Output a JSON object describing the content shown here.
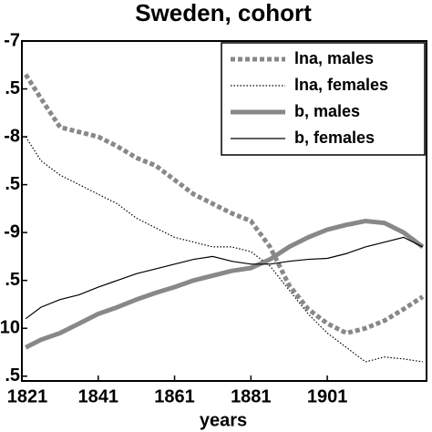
{
  "chart_data": {
    "type": "line",
    "title": "Sweden, cohort",
    "xlabel": "years",
    "x": [
      1822,
      1826,
      1831,
      1836,
      1841,
      1846,
      1851,
      1856,
      1861,
      1866,
      1871,
      1876,
      1881,
      1886,
      1891,
      1896,
      1901,
      1906,
      1911,
      1916,
      1921,
      1926
    ],
    "series": [
      {
        "name": "lna, males",
        "color": "#888888",
        "style": "dashed",
        "weight": "thick",
        "values": [
          -7.35,
          -7.6,
          -7.9,
          -7.95,
          -8.0,
          -8.1,
          -8.22,
          -8.3,
          -8.45,
          -8.6,
          -8.7,
          -8.8,
          -8.88,
          -9.15,
          -9.55,
          -9.8,
          -9.95,
          -10.05,
          -10.0,
          -9.92,
          -9.8,
          -9.67
        ]
      },
      {
        "name": "lna, females",
        "color": "#000000",
        "style": "dotted",
        "weight": "thin",
        "values": [
          -8.0,
          -8.25,
          -8.4,
          -8.5,
          -8.6,
          -8.7,
          -8.85,
          -8.95,
          -9.05,
          -9.1,
          -9.15,
          -9.15,
          -9.2,
          -9.35,
          -9.6,
          -9.85,
          -10.05,
          -10.2,
          -10.35,
          -10.3,
          -10.32,
          -10.35
        ]
      },
      {
        "name": "b, males",
        "color": "#888888",
        "style": "solid",
        "weight": "thick",
        "values": [
          -10.2,
          -10.12,
          -10.05,
          -9.95,
          -9.85,
          -9.78,
          -9.7,
          -9.63,
          -9.57,
          -9.5,
          -9.45,
          -9.4,
          -9.37,
          -9.28,
          -9.15,
          -9.05,
          -8.97,
          -8.92,
          -8.88,
          -8.9,
          -9.0,
          -9.15
        ]
      },
      {
        "name": "b, females",
        "color": "#000000",
        "style": "solid",
        "weight": "thin",
        "values": [
          -9.9,
          -9.78,
          -9.7,
          -9.65,
          -9.57,
          -9.5,
          -9.43,
          -9.38,
          -9.33,
          -9.28,
          -9.25,
          -9.3,
          -9.33,
          -9.33,
          -9.3,
          -9.28,
          -9.27,
          -9.22,
          -9.15,
          -9.1,
          -9.05,
          -9.15
        ]
      }
    ],
    "xlim": [
      1821,
      1927
    ],
    "xticks": [
      1821,
      1841,
      1861,
      1881,
      1901
    ],
    "ylim": [
      -7,
      -10.55
    ],
    "yticks": [
      -7,
      {
        "value": -7.5,
        "label": ".5"
      },
      -8,
      {
        "value": -8.5,
        "label": ".5"
      },
      -9,
      {
        "value": -9.5,
        "label": ".5"
      },
      {
        "value": -10,
        "label": "10"
      },
      {
        "value": -10.5,
        "label": ".5"
      }
    ],
    "legend": "upper right"
  }
}
